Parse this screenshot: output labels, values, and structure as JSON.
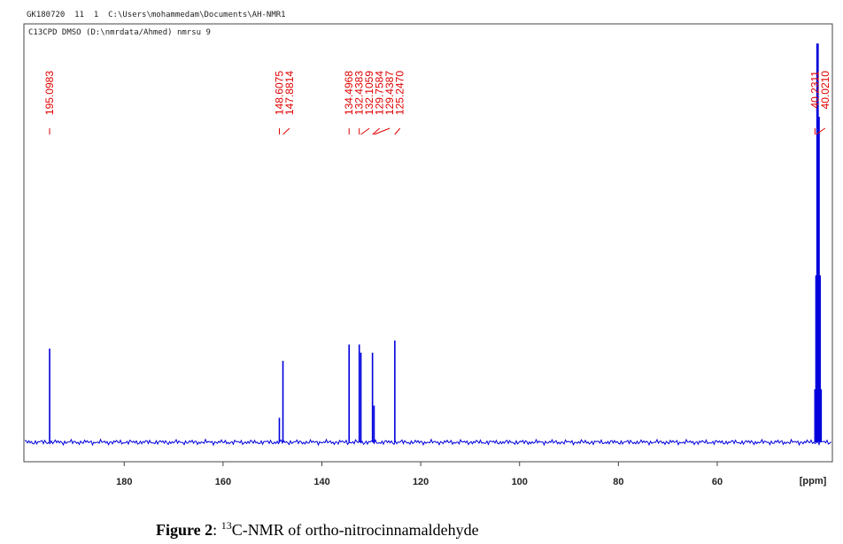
{
  "chart_data": {
    "type": "spectrum",
    "header": [
      "GK180720  11  1  C:\\Users\\mohammedam\\Documents\\AH-NMR1",
      "C13CPD DMSO (D:\\nmrdata/Ahmed) nmrsu 9"
    ],
    "x": [
      195.0983,
      148.6075,
      147.8814,
      134.4968,
      132.4383,
      132.1059,
      129.7584,
      129.4387,
      125.247,
      40.2311,
      40.021,
      39.81,
      39.6,
      39.39,
      39.18,
      38.97
    ],
    "x_labels": [
      "195.0983",
      "148.6075",
      "147.8814",
      "134.4968",
      "132.4383",
      "132.1059",
      "129.7584",
      "129.4387",
      "125.2470",
      "40.2311",
      "40.0210",
      null,
      null,
      null,
      null,
      null
    ],
    "values": [
      23,
      6,
      20,
      24,
      24,
      22,
      22,
      9,
      25,
      13,
      41,
      98,
      98,
      80,
      41,
      13
    ],
    "color": "#0000dd",
    "label_color": "#e00000",
    "xlim": [
      200.3,
      36.7
    ],
    "ylim": [
      -4.8,
      100
    ],
    "xticks": [
      180,
      160,
      140,
      120,
      100,
      80,
      60
    ],
    "xlabel": "[ppm]",
    "caption": [
      "Figure 2",
      ": ",
      "13",
      "C-NMR of ortho-nitrocinnamaldehyde"
    ]
  }
}
